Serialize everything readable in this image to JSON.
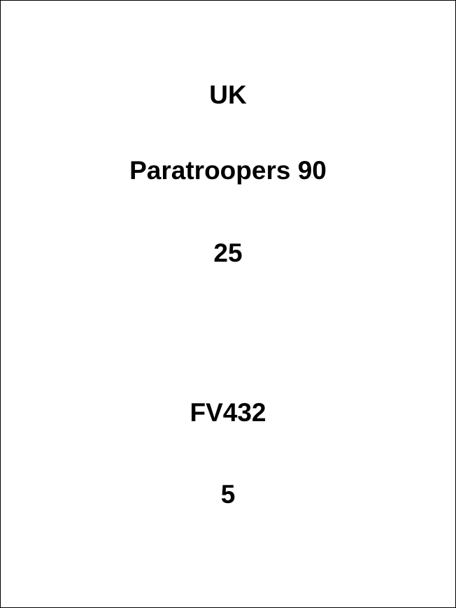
{
  "card": {
    "country": "UK",
    "unit_name": "Paratroopers 90",
    "unit_value": "25",
    "vehicle_name": "FV432",
    "vehicle_value": "5"
  }
}
